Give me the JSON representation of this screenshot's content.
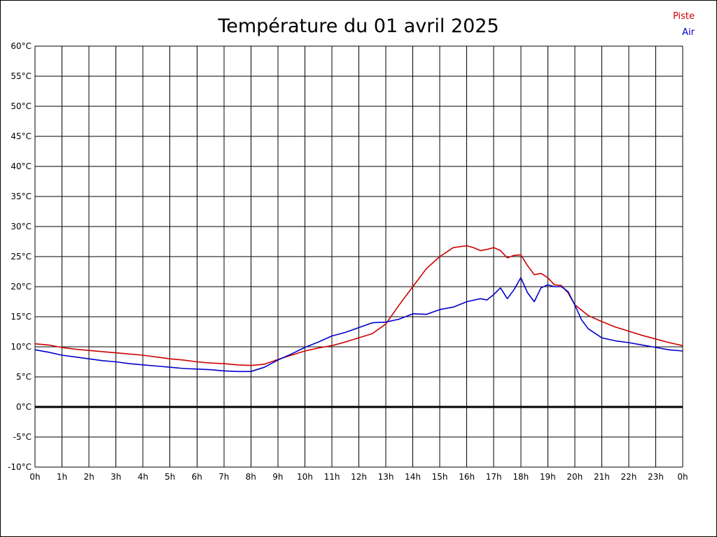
{
  "chart_data": {
    "type": "line",
    "title": "Température du 01 avril 2025",
    "xlabel": "",
    "ylabel": "",
    "xlim": [
      0,
      24
    ],
    "ylim": [
      -10,
      60
    ],
    "grid": true,
    "zero_line": {
      "value": 0,
      "color": "#000000",
      "width": 3
    },
    "x_tick_labels": [
      "0h",
      "1h",
      "2h",
      "3h",
      "4h",
      "5h",
      "6h",
      "7h",
      "8h",
      "9h",
      "10h",
      "11h",
      "12h",
      "13h",
      "14h",
      "15h",
      "16h",
      "17h",
      "18h",
      "19h",
      "20h",
      "21h",
      "22h",
      "23h",
      "0h"
    ],
    "y_tick_labels": [
      "-10°C",
      "-5°C",
      "0°C",
      "5°C",
      "10°C",
      "15°C",
      "20°C",
      "25°C",
      "30°C",
      "35°C",
      "40°C",
      "45°C",
      "50°C",
      "55°C",
      "60°C"
    ],
    "y_tick_values": [
      -10,
      -5,
      0,
      5,
      10,
      15,
      20,
      25,
      30,
      35,
      40,
      45,
      50,
      55,
      60
    ],
    "legend_position": "top-right",
    "legend": [
      {
        "label": "Piste",
        "color": "#cc0000"
      },
      {
        "label": "Air",
        "color": "#0000cc"
      }
    ],
    "series": [
      {
        "name": "Piste",
        "color": "#cc0000",
        "points": [
          [
            0,
            10.5
          ],
          [
            0.5,
            10.3
          ],
          [
            1,
            9.9
          ],
          [
            1.5,
            9.6
          ],
          [
            2,
            9.4
          ],
          [
            2.5,
            9.2
          ],
          [
            3,
            9.0
          ],
          [
            3.5,
            8.8
          ],
          [
            4,
            8.6
          ],
          [
            4.5,
            8.3
          ],
          [
            5,
            8.0
          ],
          [
            5.5,
            7.8
          ],
          [
            6,
            7.5
          ],
          [
            6.5,
            7.3
          ],
          [
            7,
            7.2
          ],
          [
            7.5,
            7.0
          ],
          [
            8,
            6.9
          ],
          [
            8.5,
            7.1
          ],
          [
            9,
            7.9
          ],
          [
            9.5,
            8.6
          ],
          [
            10,
            9.3
          ],
          [
            10.5,
            9.8
          ],
          [
            11,
            10.2
          ],
          [
            11.5,
            10.8
          ],
          [
            12,
            11.5
          ],
          [
            12.5,
            12.2
          ],
          [
            13,
            13.8
          ],
          [
            13.5,
            17.0
          ],
          [
            14,
            20.0
          ],
          [
            14.5,
            23.0
          ],
          [
            15,
            25.0
          ],
          [
            15.5,
            26.5
          ],
          [
            16,
            26.8
          ],
          [
            16.25,
            26.5
          ],
          [
            16.5,
            26.0
          ],
          [
            16.75,
            26.2
          ],
          [
            17,
            26.5
          ],
          [
            17.25,
            26.0
          ],
          [
            17.5,
            24.8
          ],
          [
            17.75,
            25.2
          ],
          [
            18,
            25.3
          ],
          [
            18.25,
            23.5
          ],
          [
            18.5,
            22.0
          ],
          [
            18.75,
            22.2
          ],
          [
            19,
            21.5
          ],
          [
            19.25,
            20.3
          ],
          [
            19.5,
            20.2
          ],
          [
            19.75,
            19.0
          ],
          [
            20,
            17.0
          ],
          [
            20.5,
            15.2
          ],
          [
            21,
            14.2
          ],
          [
            21.5,
            13.3
          ],
          [
            22,
            12.6
          ],
          [
            22.5,
            11.9
          ],
          [
            23,
            11.3
          ],
          [
            23.5,
            10.7
          ],
          [
            24,
            10.2
          ]
        ]
      },
      {
        "name": "Air",
        "color": "#0000cc",
        "points": [
          [
            0,
            9.5
          ],
          [
            0.5,
            9.1
          ],
          [
            1,
            8.6
          ],
          [
            1.5,
            8.3
          ],
          [
            2,
            8.0
          ],
          [
            2.5,
            7.7
          ],
          [
            3,
            7.5
          ],
          [
            3.5,
            7.2
          ],
          [
            4,
            7.0
          ],
          [
            4.5,
            6.8
          ],
          [
            5,
            6.6
          ],
          [
            5.5,
            6.4
          ],
          [
            6,
            6.3
          ],
          [
            6.5,
            6.2
          ],
          [
            7,
            6.0
          ],
          [
            7.5,
            5.9
          ],
          [
            8,
            5.9
          ],
          [
            8.5,
            6.6
          ],
          [
            9,
            7.8
          ],
          [
            9.5,
            8.8
          ],
          [
            10,
            9.9
          ],
          [
            10.5,
            10.8
          ],
          [
            11,
            11.8
          ],
          [
            11.5,
            12.4
          ],
          [
            12,
            13.2
          ],
          [
            12.5,
            14.0
          ],
          [
            13,
            14.1
          ],
          [
            13.5,
            14.6
          ],
          [
            14,
            15.5
          ],
          [
            14.5,
            15.4
          ],
          [
            15,
            16.2
          ],
          [
            15.5,
            16.6
          ],
          [
            16,
            17.5
          ],
          [
            16.5,
            18.0
          ],
          [
            16.75,
            17.8
          ],
          [
            17,
            18.7
          ],
          [
            17.25,
            19.8
          ],
          [
            17.5,
            18.0
          ],
          [
            17.75,
            19.5
          ],
          [
            18,
            21.5
          ],
          [
            18.25,
            19.0
          ],
          [
            18.5,
            17.5
          ],
          [
            18.75,
            19.8
          ],
          [
            19,
            20.3
          ],
          [
            19.25,
            20.0
          ],
          [
            19.5,
            20.0
          ],
          [
            19.75,
            19.2
          ],
          [
            20,
            17.0
          ],
          [
            20.25,
            14.5
          ],
          [
            20.5,
            13.0
          ],
          [
            21,
            11.5
          ],
          [
            21.5,
            11.0
          ],
          [
            22,
            10.7
          ],
          [
            22.5,
            10.3
          ],
          [
            23,
            9.9
          ],
          [
            23.5,
            9.5
          ],
          [
            24,
            9.3
          ]
        ]
      }
    ]
  }
}
